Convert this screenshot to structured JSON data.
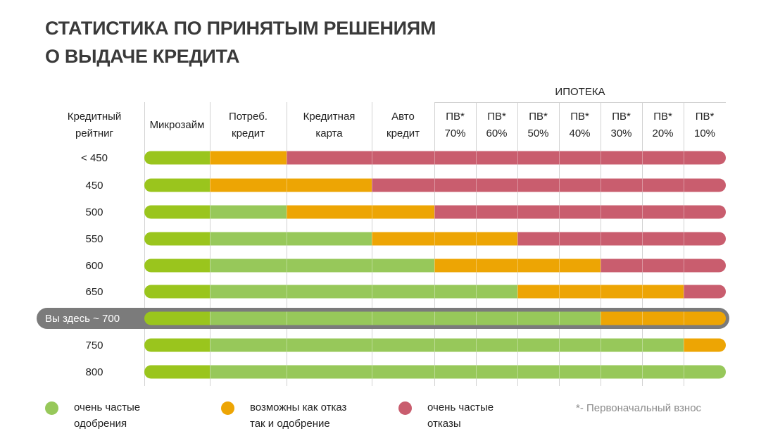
{
  "title": {
    "line1": "СТАТИСТИКА ПО ПРИНЯТЫМ РЕШЕНИЯМ",
    "line2": "О ВЫДАЧЕ КРЕДИТА"
  },
  "colors": {
    "green": "#97c85a",
    "green_micro": "#9ac51d",
    "orange": "#eda504",
    "red": "#c95d6e",
    "highlight_bg": "#7b7b7b",
    "gridline": "#d2d2d2"
  },
  "chart_data": {
    "type": "heatmap",
    "group_header": "ИПОТЕКА",
    "row_header": [
      "Кредитный",
      "рейтниг"
    ],
    "columns": [
      [
        "Микрозайм"
      ],
      [
        "Потреб.",
        "кредит"
      ],
      [
        "Кредитная",
        "карта"
      ],
      [
        "Авто",
        "кредит"
      ],
      [
        "ПВ*",
        "70%"
      ],
      [
        "ПВ*",
        "60%"
      ],
      [
        "ПВ*",
        "50%"
      ],
      [
        "ПВ*",
        "40%"
      ],
      [
        "ПВ*",
        "30%"
      ],
      [
        "ПВ*",
        "20%"
      ],
      [
        "ПВ*",
        "10%"
      ]
    ],
    "rows": [
      {
        "label": "< 450",
        "cells": [
          "micro",
          "orange",
          "red",
          "red",
          "red",
          "red",
          "red",
          "red",
          "red",
          "red",
          "red"
        ]
      },
      {
        "label": "450",
        "cells": [
          "micro",
          "orange",
          "orange",
          "red",
          "red",
          "red",
          "red",
          "red",
          "red",
          "red",
          "red"
        ]
      },
      {
        "label": "500",
        "cells": [
          "micro",
          "green",
          "orange",
          "orange",
          "red",
          "red",
          "red",
          "red",
          "red",
          "red",
          "red"
        ]
      },
      {
        "label": "550",
        "cells": [
          "micro",
          "green",
          "green",
          "orange",
          "orange",
          "orange",
          "red",
          "red",
          "red",
          "red",
          "red"
        ]
      },
      {
        "label": "600",
        "cells": [
          "micro",
          "green",
          "green",
          "green",
          "orange",
          "orange",
          "orange",
          "orange",
          "red",
          "red",
          "red"
        ]
      },
      {
        "label": "650",
        "cells": [
          "micro",
          "green",
          "green",
          "green",
          "green",
          "green",
          "orange",
          "orange",
          "orange",
          "orange",
          "red"
        ]
      },
      {
        "label": "Вы здесь ~ 700",
        "cells": [
          "micro",
          "green",
          "green",
          "green",
          "green",
          "green",
          "green",
          "green",
          "orange",
          "orange",
          "orange"
        ],
        "highlight": true
      },
      {
        "label": "750",
        "cells": [
          "micro",
          "green",
          "green",
          "green",
          "green",
          "green",
          "green",
          "green",
          "green",
          "green",
          "orange"
        ]
      },
      {
        "label": "800",
        "cells": [
          "micro",
          "green",
          "green",
          "green",
          "green",
          "green",
          "green",
          "green",
          "green",
          "green",
          "green"
        ]
      }
    ],
    "legend": [
      {
        "key": "green",
        "lines": [
          "очень частые",
          "одобрения"
        ]
      },
      {
        "key": "orange",
        "lines": [
          "возможны как отказ",
          "так и одобрение"
        ]
      },
      {
        "key": "red",
        "lines": [
          "очень частые",
          "отказы"
        ]
      }
    ],
    "footnote": "*- Первоначальный взнос"
  }
}
